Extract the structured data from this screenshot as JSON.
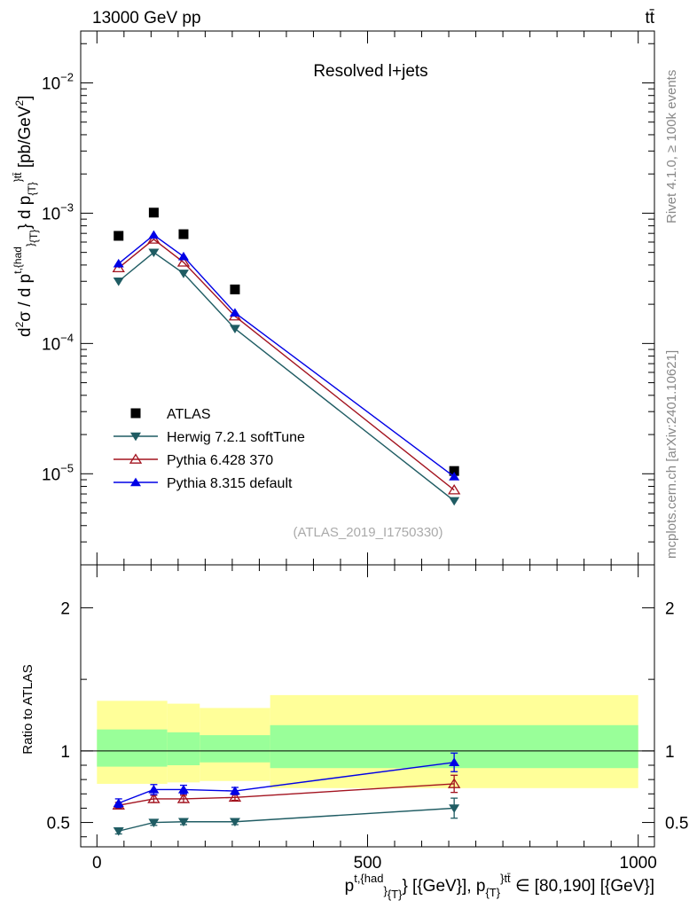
{
  "header": {
    "beam": "13000 GeV pp",
    "process": "tt̄"
  },
  "side_labels": {
    "rivet": "Rivet 4.1.0, ≥ 100k events",
    "mcplots": "mcplots.cern.ch [arXiv:2401.10621]"
  },
  "chart_data": [
    {
      "panel": "main",
      "type": "scatter",
      "title": "Resolved l+jets",
      "watermark": "(ATLAS_2019_I1750330)",
      "yscale": "log",
      "ylim": [
        2e-06,
        0.025
      ],
      "xlim": [
        -30,
        1030
      ],
      "ylabel": "d²σ / d p^{t,{had}}_{T} d p_{T}^{tt̄} [pb/GeV²]",
      "ytick_labels": [
        "10^{-5}",
        "10^{-4}",
        "10^{-3}",
        "10^{-2}"
      ],
      "x": [
        40,
        105,
        160,
        255,
        660
      ],
      "series": [
        {
          "name": "ATLAS",
          "color": "#000000",
          "marker": "square",
          "line": false,
          "values": [
            0.00067,
            0.00101,
            0.00069,
            0.00026,
            1.05e-05
          ]
        },
        {
          "name": "Herwig 7.2.1 softTune",
          "color": "#1f5c63",
          "marker": "triangle-down",
          "line": true,
          "values": [
            0.0003,
            0.0005,
            0.000345,
            0.00013,
            6.2e-06
          ]
        },
        {
          "name": "Pythia 6.428 370",
          "color": "#a3131f",
          "marker": "triangle-up-open",
          "line": true,
          "values": [
            0.00038,
            0.00063,
            0.00042,
            0.000162,
            7.5e-06
          ]
        },
        {
          "name": "Pythia 8.315 default",
          "color": "#0000e6",
          "marker": "triangle-up",
          "line": true,
          "values": [
            0.00041,
            0.00068,
            0.000465,
            0.000172,
            9.5e-06
          ]
        }
      ]
    },
    {
      "panel": "ratio",
      "type": "line",
      "ylabel": "Ratio to ATLAS",
      "xlabel": "p^{t,{had}}_{T} [{GeV}], p_{T}^{tt̄} ∈ [80,190] [{GeV}]",
      "ylim": [
        0.33,
        2.3
      ],
      "xlim": [
        -30,
        1030
      ],
      "x_ticks": [
        0,
        500,
        1000
      ],
      "x_tick_labels": [
        "0",
        "500",
        "1000"
      ],
      "y_tick_labels": [
        "0.5",
        "1",
        "2"
      ],
      "bands": [
        {
          "x0": 0,
          "x1": 130,
          "outer": [
            0.77,
            1.35
          ],
          "inner": [
            0.89,
            1.15
          ]
        },
        {
          "x0": 130,
          "x1": 190,
          "outer": [
            0.78,
            1.33
          ],
          "inner": [
            0.9,
            1.13
          ]
        },
        {
          "x0": 190,
          "x1": 320,
          "outer": [
            0.79,
            1.3
          ],
          "inner": [
            0.92,
            1.11
          ]
        },
        {
          "x0": 320,
          "x1": 1000,
          "outer": [
            0.74,
            1.39
          ],
          "inner": [
            0.88,
            1.18
          ]
        }
      ],
      "x": [
        40,
        105,
        160,
        255,
        660
      ],
      "series": [
        {
          "name": "Herwig 7.2.1 softTune",
          "color": "#1f5c63",
          "marker": "triangle-down",
          "values": [
            0.44,
            0.5,
            0.505,
            0.505,
            0.6
          ],
          "err": [
            0.02,
            0.02,
            0.02,
            0.02,
            0.07
          ]
        },
        {
          "name": "Pythia 6.428 370",
          "color": "#a3131f",
          "marker": "triangle-up-open",
          "values": [
            0.62,
            0.665,
            0.665,
            0.675,
            0.77
          ],
          "err": [
            0.02,
            0.025,
            0.025,
            0.02,
            0.06
          ]
        },
        {
          "name": "Pythia 8.315 default",
          "color": "#0000e6",
          "marker": "triangle-up",
          "values": [
            0.635,
            0.73,
            0.73,
            0.72,
            0.92
          ],
          "err": [
            0.03,
            0.035,
            0.03,
            0.025,
            0.065
          ]
        }
      ]
    }
  ]
}
